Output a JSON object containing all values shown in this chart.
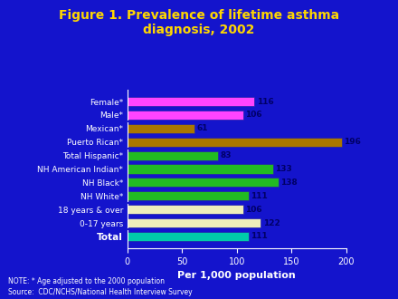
{
  "title": "Figure 1. Prevalence of lifetime asthma\ndiagnosis, 2002",
  "title_color": "#FFD700",
  "background_color": "#1414CC",
  "plot_bg_color": "#1414CC",
  "xlabel": "Per 1,000 population",
  "xlabel_color": "#FFFFFF",
  "xlim": [
    0,
    200
  ],
  "xticks": [
    0,
    50,
    100,
    150,
    200
  ],
  "categories": [
    "Female*",
    "Male*",
    "Mexican*",
    "Puerto Rican*",
    "Total Hispanic*",
    "NH American Indian*",
    "NH Black*",
    "NH White*",
    "18 years & over",
    "0-17 years",
    "Total"
  ],
  "values": [
    116,
    106,
    61,
    196,
    83,
    133,
    138,
    111,
    106,
    122,
    111
  ],
  "bar_colors": [
    "#FF44FF",
    "#FF44FF",
    "#AA7700",
    "#AA7700",
    "#22BB22",
    "#22BB22",
    "#22BB22",
    "#22BB22",
    "#EEEEBB",
    "#EEEEBB",
    "#00CCAA"
  ],
  "bar_edge_color": "#2222AA",
  "value_label_color": "#000066",
  "tick_label_color": "#FFFFFF",
  "axis_color": "#FFFFFF",
  "note_line1": "NOTE: * Age adjusted to the 2000 population",
  "note_line2": "Source:  CDC/NCHS/National Health Interview Survey",
  "note_color": "#FFFFFF",
  "total_bold_idx": 10
}
